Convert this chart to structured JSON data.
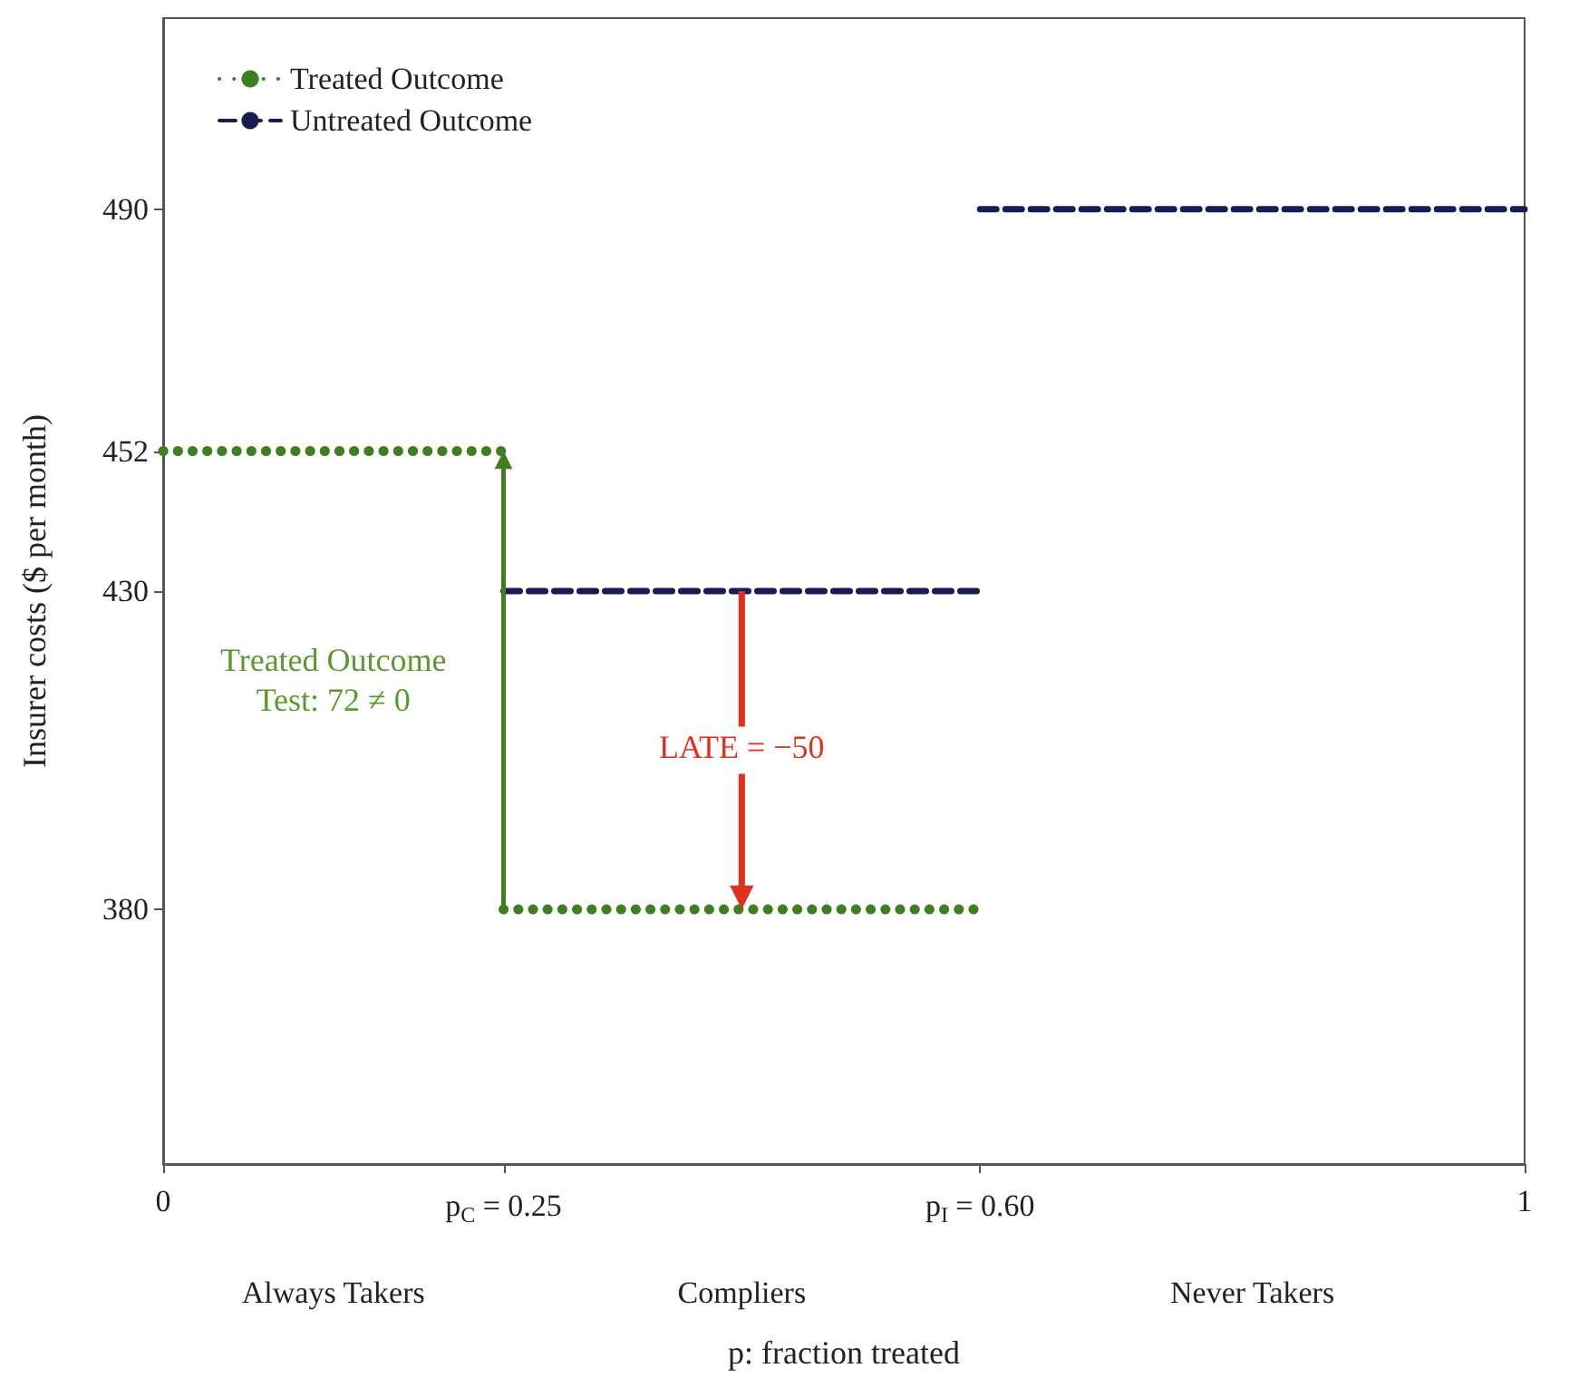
{
  "chart_data": {
    "type": "line",
    "xlabel": "p: fraction treated",
    "ylabel": "Insurer costs ($ per month)",
    "series": [
      {
        "name": "Treated Outcome",
        "color": "#3f7f1f",
        "line_style": "dotted",
        "x": [
          0,
          0.25
        ],
        "values": [
          452,
          452
        ]
      },
      {
        "color": "#3f7f1f",
        "line_style": "dotted",
        "x": [
          0.25,
          0.6
        ],
        "values": [
          380,
          380
        ]
      },
      {
        "name": "Untreated Outcome",
        "color": "#171c55",
        "line_style": "dashed",
        "x": [
          0.25,
          0.6
        ],
        "values": [
          430,
          430
        ]
      },
      {
        "color": "#171c55",
        "line_style": "dashed",
        "x": [
          0.6,
          1
        ],
        "values": [
          490,
          490
        ]
      }
    ],
    "xlim": [
      0,
      1
    ],
    "xticks": [
      0,
      {
        "value": 0.25,
        "label": "p$_{C}$ = 0.25"
      },
      {
        "value": 0.6,
        "label": "p$_{I}$ = 0.60"
      },
      1
    ],
    "ylim": [
      340,
      520
    ],
    "yticks": [
      380,
      430,
      452,
      490
    ],
    "annotations": [
      "Always Takers",
      "Compliers",
      "Never Takers",
      "Treated Outcome\nTest: 72 ≠ 0",
      "LATE = −50"
    ],
    "grid": false,
    "legend": "top left",
    "marker": "none"
  }
}
